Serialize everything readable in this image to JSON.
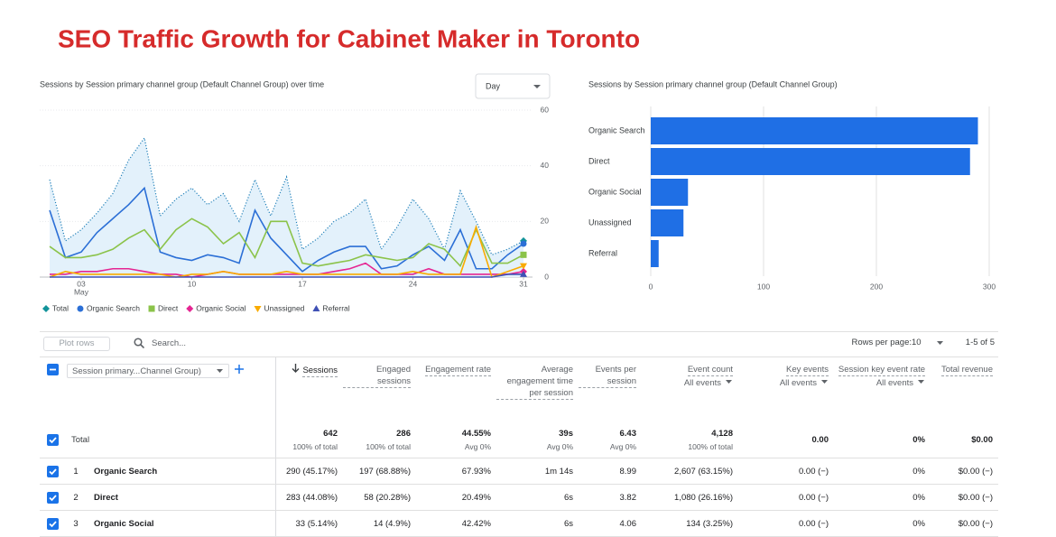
{
  "header": {
    "title": "SEO Traffic Growth for Cabinet Maker in Toronto"
  },
  "chart_data": [
    {
      "type": "line",
      "title": "Sessions by Session primary channel group (Default Channel Group) over time",
      "period_select": "Day",
      "x": [
        1,
        2,
        3,
        4,
        5,
        6,
        7,
        8,
        9,
        10,
        11,
        12,
        13,
        14,
        15,
        16,
        17,
        18,
        19,
        20,
        21,
        22,
        23,
        24,
        25,
        26,
        27,
        28,
        29,
        30,
        31
      ],
      "xlim": [
        1,
        31
      ],
      "xticks": [
        {
          "value": 3,
          "label": "03"
        },
        10,
        17,
        24,
        31
      ],
      "x_month_label": "May",
      "ylim": [
        0,
        60
      ],
      "yticks": [
        0,
        20,
        40,
        60
      ],
      "grid": true,
      "legend": "bottom",
      "series": [
        {
          "name": "Total",
          "color": "#1f7fb8",
          "marker_color": "#12939a",
          "marker": "diamond",
          "style": "dotted",
          "fill": "#e3f1fb",
          "values": [
            35,
            13,
            17,
            23,
            30,
            42,
            50,
            22,
            28,
            32,
            26,
            30,
            20,
            35,
            22,
            36,
            10,
            14,
            20,
            23,
            28,
            10,
            18,
            28,
            21,
            10,
            31,
            20,
            8,
            10,
            13
          ]
        },
        {
          "name": "Organic Search",
          "color": "#2b6fd6",
          "marker": "circle",
          "style": "solid",
          "values": [
            24,
            7,
            9,
            16,
            21,
            26,
            32,
            9,
            7,
            6,
            8,
            7,
            5,
            24,
            14,
            8,
            2,
            6,
            9,
            11,
            11,
            3,
            4,
            8,
            11,
            6,
            17,
            3,
            3,
            8,
            12
          ]
        },
        {
          "name": "Direct",
          "color": "#8bc34a",
          "marker": "square",
          "style": "solid",
          "values": [
            11,
            7,
            7,
            8,
            10,
            14,
            17,
            10,
            17,
            21,
            18,
            12,
            16,
            7,
            20,
            20,
            5,
            4,
            5,
            6,
            8,
            7,
            6,
            7,
            12,
            10,
            4,
            17,
            5,
            5,
            8
          ]
        },
        {
          "name": "Organic Social",
          "color": "#e52592",
          "marker": "diamond",
          "style": "solid",
          "values": [
            1,
            1,
            2,
            2,
            3,
            3,
            2,
            1,
            1,
            0,
            1,
            2,
            1,
            1,
            1,
            1,
            1,
            1,
            2,
            3,
            5,
            1,
            1,
            1,
            3,
            1,
            1,
            1,
            1,
            1,
            2
          ]
        },
        {
          "name": "Unassigned",
          "color": "#f9ab00",
          "marker": "triangle-down",
          "style": "solid",
          "values": [
            0,
            2,
            1,
            1,
            1,
            1,
            1,
            1,
            0,
            1,
            1,
            2,
            1,
            1,
            1,
            2,
            1,
            1,
            1,
            1,
            1,
            1,
            1,
            2,
            1,
            1,
            1,
            18,
            0,
            2,
            4
          ]
        },
        {
          "name": "Referral",
          "color": "#3f51b5",
          "marker": "triangle-up",
          "style": "solid",
          "values": [
            0,
            0,
            0,
            0,
            0,
            0,
            0,
            0,
            0,
            0,
            0,
            0,
            0,
            0,
            0,
            0,
            0,
            0,
            0,
            0,
            0,
            0,
            0,
            0,
            0,
            0,
            0,
            0,
            0,
            1,
            1
          ]
        }
      ]
    },
    {
      "type": "bar",
      "title": "Sessions by Session primary channel group (Default Channel Group)",
      "orientation": "horizontal",
      "categories": [
        "Organic Search",
        "Direct",
        "Organic Social",
        "Unassigned",
        "Referral"
      ],
      "values": [
        290,
        283,
        33,
        29,
        7
      ],
      "color": "#1f6fe5",
      "xlim": [
        0,
        300
      ],
      "xticks": [
        0,
        100,
        200,
        300
      ],
      "grid": true
    }
  ],
  "table": {
    "plot_rows": "Plot rows",
    "search_placeholder": "Search...",
    "rows_per_page_label": "Rows per page:",
    "rows_per_page": "10",
    "pagination": "1-5 of 5",
    "dimension_select": "Session primary...Channel Group)",
    "columns": [
      {
        "name": "Sessions",
        "sorted": true
      },
      {
        "name": "Engaged sessions"
      },
      {
        "name": "Engagement rate"
      },
      {
        "name": "Average engagement time per session"
      },
      {
        "name": "Events per session"
      },
      {
        "name": "Event count",
        "filter": "All events"
      },
      {
        "name": "Key events",
        "filter": "All events"
      },
      {
        "name": "Session key event rate",
        "filter": "All events"
      },
      {
        "name": "Total revenue"
      }
    ],
    "total": {
      "label": "Total",
      "cells": [
        [
          "642",
          "100% of total"
        ],
        [
          "286",
          "100% of total"
        ],
        [
          "44.55%",
          "Avg 0%"
        ],
        [
          "39s",
          "Avg 0%"
        ],
        [
          "6.43",
          "Avg 0%"
        ],
        [
          "4,128",
          "100% of total"
        ],
        [
          "0.00"
        ],
        [
          "0%"
        ],
        [
          "$0.00"
        ]
      ]
    },
    "rows": [
      {
        "rank": "1",
        "name": "Organic Search",
        "cells": [
          "290 (45.17%)",
          "197 (68.88%)",
          "67.93%",
          "1m 14s",
          "8.99",
          "2,607 (63.15%)",
          "0.00 (−)",
          "0%",
          "$0.00 (−)"
        ]
      },
      {
        "rank": "2",
        "name": "Direct",
        "cells": [
          "283 (44.08%)",
          "58 (20.28%)",
          "20.49%",
          "6s",
          "3.82",
          "1,080 (26.16%)",
          "0.00 (−)",
          "0%",
          "$0.00 (−)"
        ]
      },
      {
        "rank": "3",
        "name": "Organic Social",
        "cells": [
          "33 (5.14%)",
          "14 (4.9%)",
          "42.42%",
          "6s",
          "4.06",
          "134 (3.25%)",
          "0.00 (−)",
          "0%",
          "$0.00 (−)"
        ]
      }
    ]
  }
}
